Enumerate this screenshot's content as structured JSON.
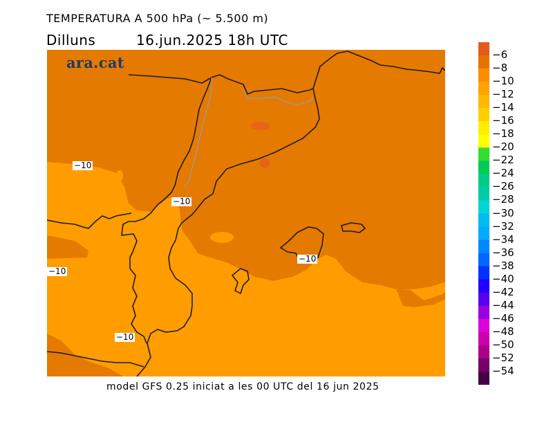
{
  "header": {
    "title": "TEMPERATURA A 500 hPa (~ 5.500 m)",
    "day": "Dilluns",
    "datetime": "16.jun.2025  18h  UTC"
  },
  "footer": {
    "source": "model GFS 0.25 iniciat a les 00 UTC del 16 jun 2025"
  },
  "logo": {
    "text": "ara.cat"
  },
  "map": {
    "region": "Catalunya / Aragó / Illes Balears",
    "fill_colors": {
      "minus8_to_minus10": "#e57a00",
      "minus10_to_minus12": "#ff9d00",
      "minus6_to_minus8": "#e8631a"
    },
    "contour_labels": [
      "−10",
      "−10",
      "−10",
      "−10",
      "−10"
    ]
  },
  "legend": {
    "labels": [
      "−6",
      "−8",
      "−10",
      "−12",
      "−14",
      "−16",
      "−18",
      "−20",
      "−22",
      "−24",
      "−26",
      "−28",
      "−30",
      "−32",
      "−34",
      "−36",
      "−38",
      "−40",
      "−42",
      "−44",
      "−46",
      "−48",
      "−50",
      "−52",
      "−54"
    ],
    "colors": [
      "#e35a1b",
      "#e67300",
      "#ff8c00",
      "#ffa300",
      "#ffb800",
      "#ffcf00",
      "#ffee00",
      "#ffff00",
      "#33dd33",
      "#00cc55",
      "#00cc88",
      "#00ccaa",
      "#00d4d4",
      "#00bbee",
      "#00aaff",
      "#0088ff",
      "#0066ff",
      "#0033ff",
      "#2200ff",
      "#5500ee",
      "#9900dd",
      "#dd00dd",
      "#cc00aa",
      "#aa0088",
      "#770066",
      "#440044"
    ]
  }
}
